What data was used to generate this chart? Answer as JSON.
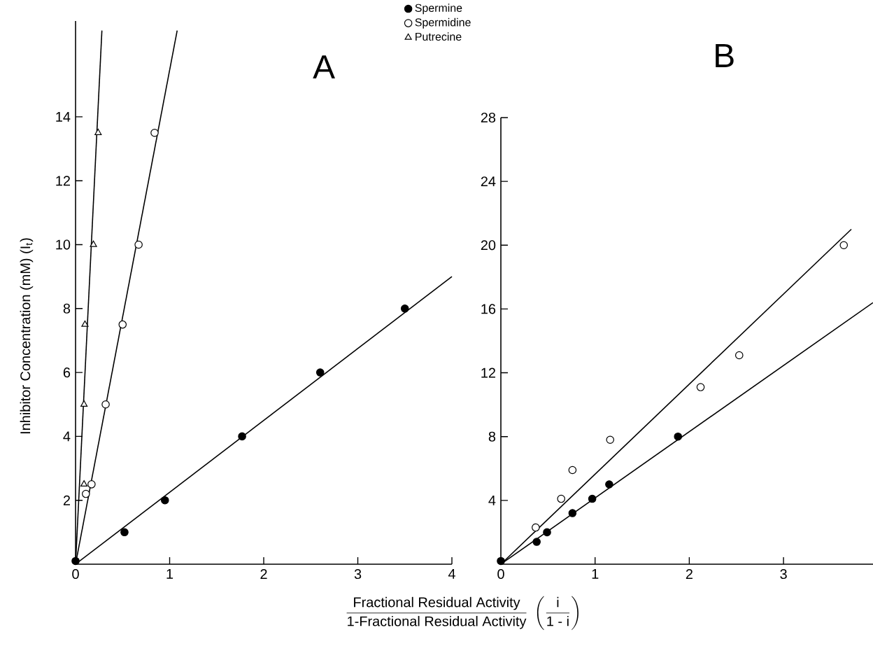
{
  "chart_data": [
    {
      "type": "scatter",
      "title": "A",
      "ylabel": "Inhibitor Concentration (mM) (I$_{t}$)",
      "xlabel": "\\frac{\\mbox{Fractional Residual Activity}}{\\mbox{1-Fractional Residual Activity}}\\;\\left(\\frac{\\mbox{i}}{\\mbox{1 - i}}\\right)",
      "xlim": [
        0,
        4
      ],
      "ylim": [
        0,
        17
      ],
      "xticks": [
        0,
        1,
        2,
        3,
        4
      ],
      "yticks": [
        2,
        4,
        6,
        8,
        10,
        12,
        14
      ],
      "legend": "top right",
      "grid": false,
      "series": [
        {
          "name": "Spermine",
          "marker": "circle",
          "color": "#000000",
          "x": [
            0,
            0.52,
            0.95,
            1.77,
            2.6,
            3.5
          ],
          "values": [
            0.1,
            1,
            2,
            4,
            6,
            8
          ]
        },
        {
          "name": "Spermidine",
          "marker": "circle",
          "color": "#000000",
          "x": [
            0.11,
            0.17,
            0.32,
            0.5,
            0.67,
            0.84
          ],
          "values": [
            2.2,
            2.5,
            5,
            7.5,
            10,
            13.5
          ]
        },
        {
          "name": "Putrecine",
          "marker": "triangle",
          "color": "#000000",
          "x": [
            0.09,
            0.09,
            0.1,
            0.19,
            0.24
          ],
          "values": [
            2.5,
            5,
            7.5,
            10,
            13.5
          ]
        },
        {
          "type": "line",
          "marker": "none",
          "color": "#000000",
          "x": [
            0,
            4
          ],
          "values": [
            0,
            9
          ]
        },
        {
          "type": "line",
          "marker": "none",
          "color": "#000000",
          "x": [
            0,
            1.08
          ],
          "values": [
            0,
            16.7
          ]
        },
        {
          "type": "line",
          "marker": "none",
          "color": "#000000",
          "x": [
            0,
            0.28
          ],
          "values": [
            0,
            16.7
          ]
        }
      ]
    },
    {
      "type": "scatter",
      "title": "B",
      "xlim": [
        0,
        3.95
      ],
      "ylim": [
        0,
        28
      ],
      "xticks": [
        0,
        1,
        2,
        3
      ],
      "yticks": [
        4,
        8,
        12,
        16,
        20,
        24,
        28
      ],
      "grid": false,
      "series": [
        {
          "marker": "circle",
          "color": "#000000",
          "x": [
            0,
            0.38,
            0.49,
            0.76,
            0.97,
            1.15,
            1.88
          ],
          "values": [
            0.2,
            1.4,
            2,
            3.2,
            4.1,
            5,
            8
          ]
        },
        {
          "marker": "circle",
          "color": "#000000",
          "x": [
            0.37,
            0.64,
            0.76,
            1.16,
            2.12,
            2.53,
            3.64
          ],
          "values": [
            2.3,
            4.1,
            5.9,
            7.8,
            11.1,
            13.1,
            20
          ]
        },
        {
          "type": "line",
          "marker": "none",
          "color": "#000000",
          "x": [
            0,
            3.95
          ],
          "values": [
            0,
            16.4
          ]
        },
        {
          "type": "line",
          "marker": "none",
          "color": "#000000",
          "x": [
            0,
            3.72
          ],
          "values": [
            0,
            21
          ]
        }
      ]
    }
  ]
}
